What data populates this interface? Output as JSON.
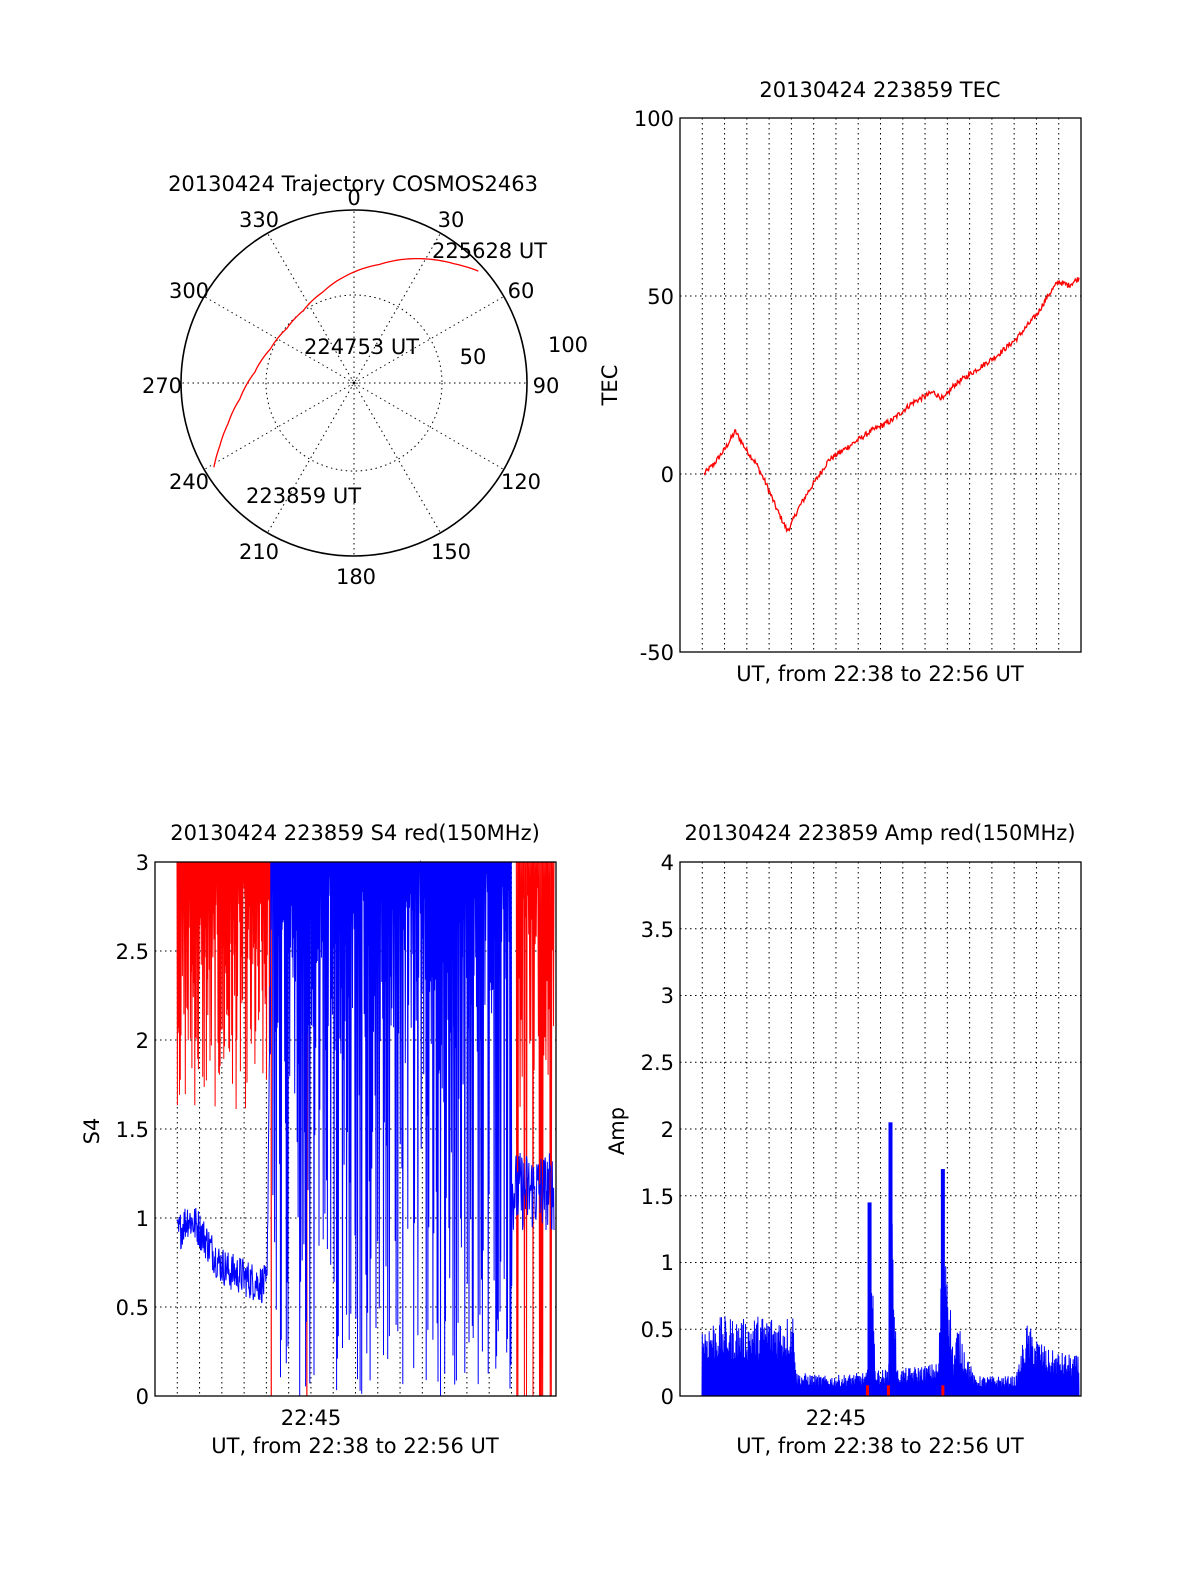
{
  "colors": {
    "red": "#ff0000",
    "blue": "#0000ff",
    "grid": "#000000"
  },
  "chart_data": [
    {
      "id": "trajectory",
      "type": "scatter",
      "title": "20130424 Trajectory COSMOS2463",
      "projection": "polar",
      "azimuth_labels": [
        "0",
        "30",
        "60",
        "90",
        "120",
        "150",
        "180",
        "210",
        "240",
        "270",
        "300",
        "330"
      ],
      "radius_labels": [
        "50",
        "100"
      ],
      "annotations": [
        "225628 UT",
        "224753 UT",
        "223859 UT"
      ],
      "path_az_el": [
        [
          239,
          5
        ],
        [
          245,
          13
        ],
        [
          252,
          21
        ],
        [
          262,
          30
        ],
        [
          276,
          38
        ],
        [
          292,
          43
        ],
        [
          309,
          45
        ],
        [
          325,
          44
        ],
        [
          341,
          40
        ],
        [
          356,
          34
        ],
        [
          12,
          27
        ],
        [
          26,
          18
        ],
        [
          40,
          9
        ],
        [
          48,
          3
        ]
      ],
      "color": "red"
    },
    {
      "id": "tec",
      "type": "line",
      "title": "20130424 223859 TEC",
      "xlabel": "UT, from 22:38 to 22:56 UT",
      "ylabel": "TEC",
      "yticks": [
        "100",
        "50",
        "0",
        "-50"
      ],
      "ylim": [
        -50,
        100
      ],
      "xlim_minutes": [
        0,
        18
      ],
      "series": [
        {
          "color": "red",
          "x": [
            0,
            0.5,
            1.0,
            1.5,
            2.0,
            2.5,
            3.0,
            3.5,
            4.0,
            4.2,
            4.5,
            5.0,
            6.0,
            7.0,
            8.0,
            9.0,
            10.0,
            11.0,
            11.5,
            12.0,
            13.0,
            14.0,
            15.0,
            16.0,
            16.5,
            17.0,
            17.5,
            18.0
          ],
          "y": [
            0,
            3,
            7,
            12,
            7,
            3,
            -3,
            -10,
            -16,
            -14,
            -10,
            -5,
            4,
            8,
            12,
            15,
            20,
            23,
            21,
            25,
            29,
            33,
            38,
            45,
            50,
            54,
            53,
            55
          ]
        }
      ]
    },
    {
      "id": "s4",
      "type": "line",
      "title": "20130424 223859 S4 red(150MHz)",
      "xlabel": "UT, from 22:38 to 22:56 UT",
      "ylabel": "S4",
      "xtick_labels": [
        "22:45"
      ],
      "yticks": [
        "3",
        "2.5",
        "2",
        "1.5",
        "1",
        "0.5",
        "0"
      ],
      "ylim": [
        0,
        3
      ],
      "xlim_minutes": [
        0,
        18
      ],
      "series": [
        {
          "color": "red",
          "segments_x": [
            [
              0,
              4.5
            ],
            [
              4.5,
              6.0
            ],
            [
              16.2,
              18
            ]
          ],
          "level": [
            2.6,
            0.0,
            2.7
          ]
        },
        {
          "color": "blue",
          "x": [
            0,
            0.5,
            1.0,
            1.5,
            2.0,
            2.5,
            3.0,
            3.5,
            4.3,
            4.5,
            7.0,
            8.5,
            10.0,
            11.0,
            12.0,
            13.0,
            14.0,
            15.0,
            16.0,
            17.0,
            18.0
          ],
          "y": [
            0.9,
            1.0,
            0.95,
            0.85,
            0.75,
            0.7,
            0.68,
            0.65,
            0.62,
            3.0,
            0.3,
            2.5,
            1.0,
            2.6,
            0.5,
            2.8,
            2.7,
            0.7,
            1.2,
            1.1,
            1.0
          ]
        }
      ]
    },
    {
      "id": "amp",
      "type": "line",
      "title": "20130424 223859 Amp red(150MHz)",
      "xlabel": "UT, from 22:38 to 22:56 UT",
      "ylabel": "Amp",
      "xtick_labels": [
        "22:45"
      ],
      "yticks": [
        "4",
        "3.5",
        "3",
        "2.5",
        "2",
        "1.5",
        "1",
        "0.5",
        "0"
      ],
      "ylim": [
        0,
        4
      ],
      "xlim_minutes": [
        0,
        18
      ],
      "series": [
        {
          "color": "blue",
          "x": [
            0,
            1.0,
            2.0,
            3.0,
            4.0,
            4.4,
            4.5,
            6.0,
            7.9,
            8.0,
            8.3,
            8.9,
            9.0,
            9.3,
            11.3,
            11.5,
            12.0,
            12.2,
            13.0,
            15.0,
            15.5,
            16.5,
            18.0
          ],
          "y": [
            0.55,
            0.6,
            0.58,
            0.62,
            0.6,
            0.65,
            0.18,
            0.15,
            0.18,
            1.45,
            0.2,
            0.2,
            2.05,
            0.2,
            0.25,
            1.7,
            0.3,
            0.55,
            0.15,
            0.15,
            0.55,
            0.35,
            0.3
          ]
        },
        {
          "color": "red",
          "x": [
            7.9,
            8.9,
            11.5
          ],
          "y": [
            0.08,
            0.08,
            0.08
          ]
        }
      ]
    }
  ]
}
